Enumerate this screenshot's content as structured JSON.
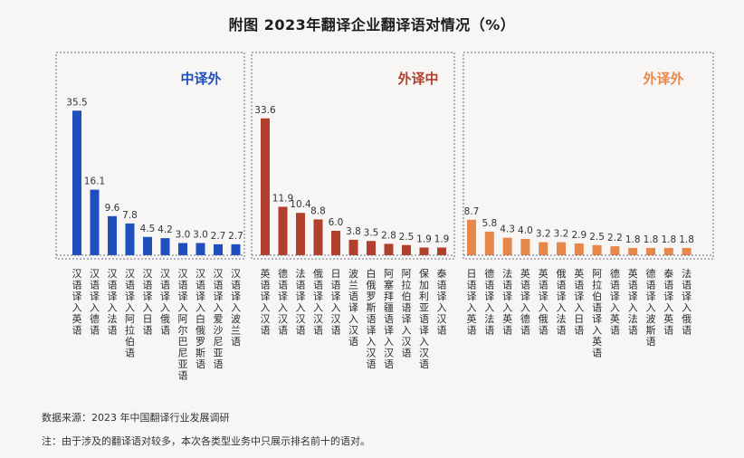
{
  "chart_data": [
    {
      "type": "bar",
      "title": "中译外",
      "color": "#1f4fbd",
      "categories": [
        "汉语译入英语",
        "汉语译入德语",
        "汉语译入法语",
        "汉语译入阿拉伯语",
        "汉语译入日语",
        "汉语译入俄语",
        "汉语译入阿尔巴尼亚语",
        "汉语译入白俄罗斯语",
        "汉语译入爱沙尼亚语",
        "汉语译入波兰语"
      ],
      "values": [
        35.5,
        16.1,
        9.6,
        7.8,
        4.5,
        4.2,
        3.0,
        3.0,
        2.7,
        2.7
      ],
      "ylim": [
        0,
        36
      ]
    },
    {
      "type": "bar",
      "title": "外译中",
      "color": "#b0402c",
      "categories": [
        "英语译入汉语",
        "德语译入汉语",
        "法语译入汉语",
        "俄语译入汉语",
        "日语译入汉语",
        "波兰语译入汉语",
        "白俄罗斯语译入汉语",
        "阿塞拜疆语译入汉语",
        "阿拉伯语译入汉语",
        "保加利亚语译入汉语",
        "泰语译入汉语"
      ],
      "values": [
        33.6,
        11.9,
        10.4,
        8.8,
        6.0,
        3.8,
        3.5,
        2.8,
        2.5,
        1.9,
        1.9
      ],
      "ylim": [
        0,
        36
      ]
    },
    {
      "type": "bar",
      "title": "外译外",
      "color": "#e8874a",
      "categories": [
        "日语译入英语",
        "德语译入法语",
        "法语译入英语",
        "英语译入德语",
        "英语译入俄语",
        "俄语译入法语",
        "英语译入日语",
        "阿拉伯语译入英语",
        "德语译入英语",
        "英语译入法语",
        "德语译入波斯语",
        "泰语译入英语",
        "法语译入俄语"
      ],
      "values": [
        8.7,
        5.8,
        4.3,
        4.0,
        3.2,
        3.2,
        2.9,
        2.5,
        2.2,
        1.8,
        1.8,
        1.8,
        1.8
      ],
      "ylim": [
        0,
        36
      ]
    }
  ],
  "title": "附图  2023年翻译企业翻译语对情况（%）",
  "source": "数据来源：2023 年中国翻译行业发展调研",
  "note": "注：由于涉及的翻译语对较多，本次各类型业务中只展示排名前十的语对。"
}
